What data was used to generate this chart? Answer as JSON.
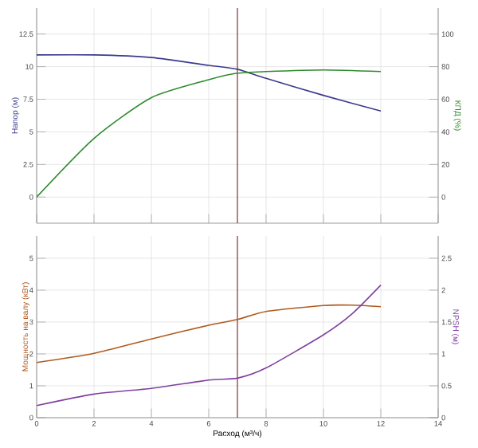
{
  "chart_data": [
    {
      "type": "line",
      "ylabel": "Напор (м)",
      "y2label": "КПД (%)",
      "x": [
        0,
        2,
        4,
        6,
        7,
        8,
        10,
        12
      ],
      "series": [
        {
          "color": "#3a3a8c",
          "values": [
            10.9,
            10.9,
            10.7,
            10.1,
            9.8,
            9.1,
            7.8,
            6.6
          ]
        },
        {
          "color": "#2e8b2e",
          "axis": "y2",
          "values": [
            0,
            36,
            61,
            72,
            76,
            77,
            78,
            77
          ]
        }
      ],
      "xlim": [
        0,
        14
      ],
      "xticks": [
        0,
        2,
        4,
        6,
        8,
        10,
        12,
        14
      ],
      "ylim": [
        -2,
        14.5
      ],
      "yticks": [
        0,
        2.5,
        5,
        7.5,
        10,
        12.5
      ],
      "y2lim": [
        -16,
        116
      ],
      "y2ticks": [
        0,
        20,
        40,
        60,
        80,
        100
      ],
      "tick_labels": "y",
      "grid": true,
      "ref_lines": [
        {
          "axis": "x",
          "value": 7,
          "color": "#8b3a3a"
        }
      ]
    },
    {
      "type": "line",
      "xlabel": "Расход (м³/ч)",
      "ylabel": "Мощность на валу (кВт)",
      "y2label": "NPSH (м)",
      "x": [
        0,
        2,
        4,
        6,
        7,
        8,
        10,
        11,
        12
      ],
      "series": [
        {
          "color": "#b05a1e",
          "values": [
            1.73,
            2.02,
            2.47,
            2.9,
            3.08,
            3.33,
            3.52,
            3.53,
            3.48
          ]
        },
        {
          "color": "#8040a0",
          "axis": "y2",
          "values": [
            0.19,
            0.37,
            0.46,
            0.59,
            0.62,
            0.78,
            1.3,
            1.63,
            2.08
          ]
        }
      ],
      "xlim": [
        0,
        14
      ],
      "xticks": [
        0,
        2,
        4,
        6,
        8,
        10,
        12,
        14
      ],
      "ylim": [
        0,
        5.7
      ],
      "yticks": [
        0,
        1,
        2,
        3,
        4,
        5
      ],
      "y2lim": [
        0,
        2.85
      ],
      "y2ticks": [
        0,
        0.5,
        1,
        1.5,
        2,
        2.5
      ],
      "grid": true,
      "ref_lines": [
        {
          "axis": "x",
          "value": 7,
          "color": "#8b3a3a"
        }
      ]
    }
  ]
}
